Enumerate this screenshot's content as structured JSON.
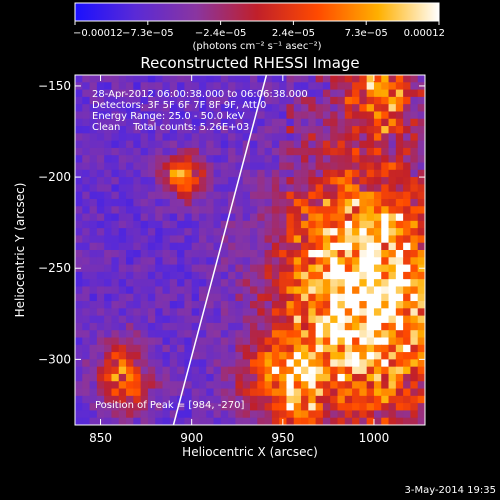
{
  "chart_data": {
    "type": "heatmap",
    "title": "Reconstructed RHESSI Image",
    "xlabel": "Heliocentric X (arcsec)",
    "ylabel": "Heliocentric Y (arcsec)",
    "xlim": [
      836,
      1028
    ],
    "ylim": [
      -336,
      -144
    ],
    "x_ticks": [
      {
        "value": 850,
        "label": "850"
      },
      {
        "value": 900,
        "label": "900"
      },
      {
        "value": 950,
        "label": "950"
      },
      {
        "value": 1000,
        "label": "1000"
      }
    ],
    "y_ticks": [
      {
        "value": -150,
        "label": "−150"
      },
      {
        "value": -200,
        "label": "−200"
      },
      {
        "value": -250,
        "label": "−250"
      },
      {
        "value": -300,
        "label": "−300"
      }
    ],
    "colorbar": {
      "min": -0.00012,
      "max": 0.00012,
      "tick_labels": [
        "−0.00012",
        "−7.3e−05",
        "−2.4e−05",
        "2.4e−05",
        "7.3e−05",
        "0.00012"
      ],
      "unit_label": "(photons cm⁻² s⁻¹ asec⁻²)",
      "colors": [
        "#1a10ff",
        "#5a2ad6",
        "#8a35a0",
        "#c0202a",
        "#ff4a00",
        "#ffb000",
        "#ffffff"
      ]
    },
    "annotations": [
      "28-Apr-2012 06:00:38.000 to 06:06:38.000",
      "Detectors: 3F 5F 6F 7F 8F 9F, Att 0",
      "Energy Range: 25.0 - 50.0 keV",
      "Clean    Total counts: 5.26E+03",
      "Position of Peak = [984, -270]"
    ],
    "limb_line": [
      [
        890,
        -336
      ],
      [
        941,
        -144
      ]
    ],
    "grid": false,
    "timestamp": "3-May-2014 19:35"
  }
}
